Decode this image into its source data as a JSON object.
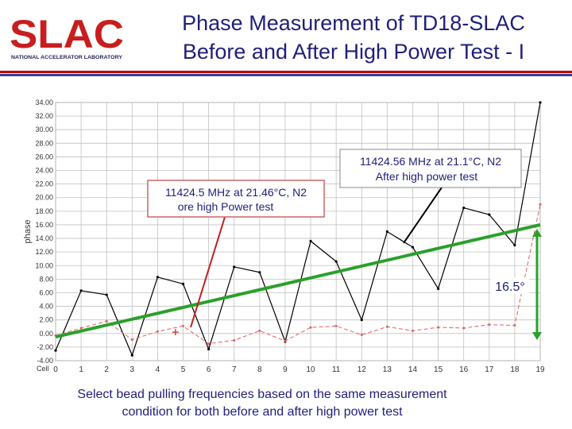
{
  "header": {
    "logo_text": "SLAC",
    "logo_subtext": "NATIONAL ACCELERATOR LABORATORY",
    "title_line1": "Phase Measurement of TD18-SLAC",
    "title_line2": "Before and After High Power Test - I"
  },
  "colors": {
    "rule_red": "#c00000",
    "rule_blue": "#3a3aa0",
    "after_series": "#000000",
    "before_series": "#e06060",
    "fit_line": "#2aa02a",
    "arrow": "#2aa02a",
    "callout_line_before": "#c02020",
    "callout_line_after": "#000000",
    "callout_border": "#cc6666"
  },
  "chart_data": {
    "type": "line",
    "ylabel": "phase",
    "ylim": [
      -4,
      34
    ],
    "xlim": [
      0,
      19
    ],
    "y_ticks": [
      "-4.00",
      "-2.00",
      "0.00",
      "2.00",
      "4.00",
      "6.00",
      "8.00",
      "10.00",
      "12.00",
      "14.00",
      "16.00",
      "18.00",
      "20.00",
      "22.00",
      "24.00",
      "26.00",
      "28.00",
      "30.00",
      "32.00",
      "34.00"
    ],
    "x_ticks": [
      "0",
      "1",
      "2",
      "3",
      "4",
      "5",
      "6",
      "7",
      "8",
      "9",
      "10",
      "11",
      "12",
      "13",
      "14",
      "15",
      "16",
      "17",
      "18",
      "19"
    ],
    "x_start_label": "Cell",
    "grid": true,
    "legend": "none",
    "series": [
      {
        "x": [
          0,
          1,
          2,
          3,
          4,
          5,
          6,
          7,
          8,
          9,
          10,
          11,
          12,
          13,
          14,
          15,
          16,
          17,
          18,
          19
        ],
        "values": [
          -2.5,
          6.3,
          5.7,
          -3.2,
          8.3,
          7.3,
          -2.3,
          9.8,
          9.0,
          -1.2,
          13.6,
          10.6,
          2.0,
          15.0,
          12.7,
          6.6,
          18.5,
          17.5,
          13.0,
          34.0
        ]
      },
      {
        "x": [
          0,
          1,
          2,
          3,
          4,
          5,
          6,
          7,
          8,
          9,
          10,
          11,
          12,
          13,
          14,
          15,
          16,
          17,
          18,
          19
        ],
        "values": [
          -0.3,
          0.8,
          1.8,
          -0.9,
          0.3,
          1.1,
          -1.5,
          -1.0,
          0.4,
          -1.1,
          0.9,
          1.1,
          -0.2,
          1.0,
          0.4,
          0.9,
          0.8,
          1.3,
          1.2,
          19.0
        ]
      }
    ],
    "fit_line": {
      "x": [
        0,
        19
      ],
      "values": [
        -0.5,
        16.0
      ]
    },
    "annotations": {
      "before": {
        "line1": "11424.5 MHz at 21.46°C, N2",
        "line2": "ore high Power test"
      },
      "after": {
        "line1": "11424.56 MHz at 21.1°C, N2",
        "line2": "After high power test"
      },
      "shift": "16.5°"
    }
  },
  "caption": {
    "line1": "Select bead pulling frequencies based on the same measurement",
    "line2": "condition for both before and after high power test"
  }
}
